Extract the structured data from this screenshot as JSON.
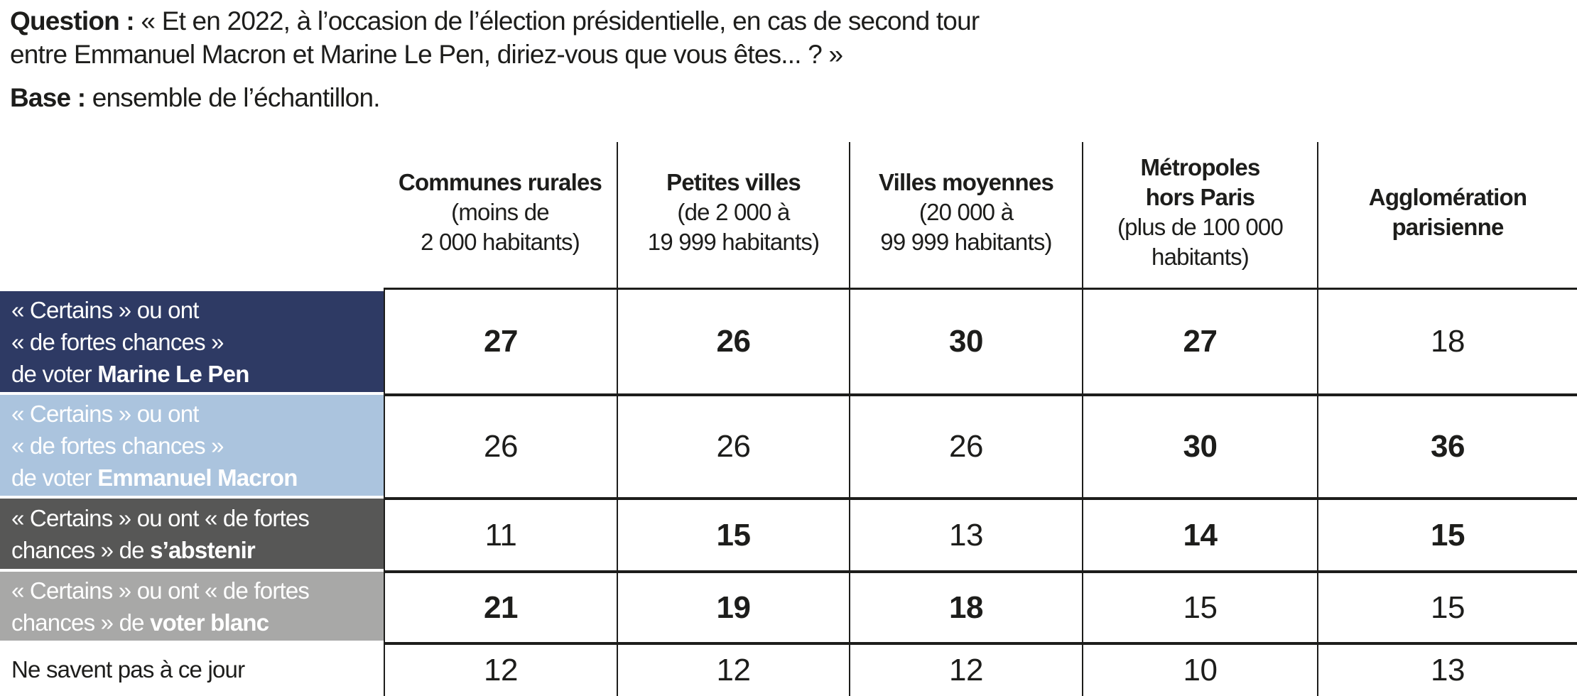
{
  "question": {
    "label": "Question :",
    "line1": " « Et en 2022, à l’occasion de l’élection présidentielle, en cas de second tour",
    "line2": "entre Emmanuel Macron et Marine Le Pen, diriez-vous que vous êtes... ? »"
  },
  "base": {
    "label": "Base :",
    "text": " ensemble de l’échantillon."
  },
  "colors": {
    "line": "#1d1d1b",
    "text": "#1d1d1b",
    "lepen_navy": "#2e3a64",
    "macron_lightblue": "#abc4de",
    "abstention_darkgray": "#575756",
    "blanc_gray": "#a8a8a7"
  },
  "table": {
    "columns": [
      {
        "lines": [
          [
            {
              "t": "Communes rurales",
              "b": true
            }
          ],
          [
            {
              "t": "(moins de"
            }
          ],
          [
            {
              "t": "2 000 habitants)"
            }
          ]
        ]
      },
      {
        "lines": [
          [
            {
              "t": "Petites villes",
              "b": true
            }
          ],
          [
            {
              "t": "(de 2 000 à"
            }
          ],
          [
            {
              "t": "19 999 habitants)"
            }
          ]
        ]
      },
      {
        "lines": [
          [
            {
              "t": "Villes moyennes",
              "b": true
            }
          ],
          [
            {
              "t": "(20 000 à"
            }
          ],
          [
            {
              "t": "99 999 habitants)"
            }
          ]
        ]
      },
      {
        "lines": [
          [
            {
              "t": "Métropoles",
              "b": true
            }
          ],
          [
            {
              "t": "hors Paris",
              "b": true
            }
          ],
          [
            {
              "t": "(plus de 100 000"
            }
          ],
          [
            {
              "t": "habitants)"
            }
          ]
        ]
      },
      {
        "lines": [
          [
            {
              "t": "Agglomération",
              "b": true
            }
          ],
          [
            {
              "t": "parisienne",
              "b": true
            }
          ]
        ]
      }
    ],
    "rows": [
      {
        "label_lines": [
          [
            {
              "t": "« Certains » ou ont"
            }
          ],
          [
            {
              "t": "« de fortes chances »"
            }
          ],
          [
            {
              "t": "de voter "
            },
            {
              "t": "Marine Le Pen",
              "b": true
            }
          ]
        ],
        "bg": "#2e3a64",
        "fg": "#ffffff",
        "values": [
          {
            "v": "27",
            "bold": true
          },
          {
            "v": "26",
            "bold": true
          },
          {
            "v": "30",
            "bold": true
          },
          {
            "v": "27",
            "bold": true
          },
          {
            "v": "18",
            "bold": false
          }
        ]
      },
      {
        "label_lines": [
          [
            {
              "t": "« Certains » ou ont"
            }
          ],
          [
            {
              "t": "« de fortes chances »"
            }
          ],
          [
            {
              "t": "de voter "
            },
            {
              "t": "Emmanuel Macron",
              "b": true
            }
          ]
        ],
        "bg": "#abc4de",
        "fg": "#ffffff",
        "values": [
          {
            "v": "26",
            "bold": false
          },
          {
            "v": "26",
            "bold": false
          },
          {
            "v": "26",
            "bold": false
          },
          {
            "v": "30",
            "bold": true
          },
          {
            "v": "36",
            "bold": true
          }
        ]
      },
      {
        "label_lines": [
          [
            {
              "t": "« Certains » ou ont « de fortes"
            }
          ],
          [
            {
              "t": "chances » de "
            },
            {
              "t": "s’abstenir",
              "b": true
            }
          ]
        ],
        "bg": "#575756",
        "fg": "#ffffff",
        "values": [
          {
            "v": "11",
            "bold": false
          },
          {
            "v": "15",
            "bold": true
          },
          {
            "v": "13",
            "bold": false
          },
          {
            "v": "14",
            "bold": true
          },
          {
            "v": "15",
            "bold": true
          }
        ]
      },
      {
        "label_lines": [
          [
            {
              "t": "« Certains » ou ont « de fortes"
            }
          ],
          [
            {
              "t": "chances » de "
            },
            {
              "t": "voter blanc",
              "b": true
            }
          ]
        ],
        "bg": "#a8a8a7",
        "fg": "#ffffff",
        "values": [
          {
            "v": "21",
            "bold": true
          },
          {
            "v": "19",
            "bold": true
          },
          {
            "v": "18",
            "bold": true
          },
          {
            "v": "15",
            "bold": false
          },
          {
            "v": "15",
            "bold": false
          }
        ]
      },
      {
        "label_lines": [
          [
            {
              "t": "Ne savent pas à ce jour"
            }
          ]
        ],
        "bg": "",
        "fg": "#1d1d1b",
        "values": [
          {
            "v": "12",
            "bold": false
          },
          {
            "v": "12",
            "bold": false
          },
          {
            "v": "12",
            "bold": false
          },
          {
            "v": "10",
            "bold": false
          },
          {
            "v": "13",
            "bold": false
          }
        ]
      }
    ]
  }
}
